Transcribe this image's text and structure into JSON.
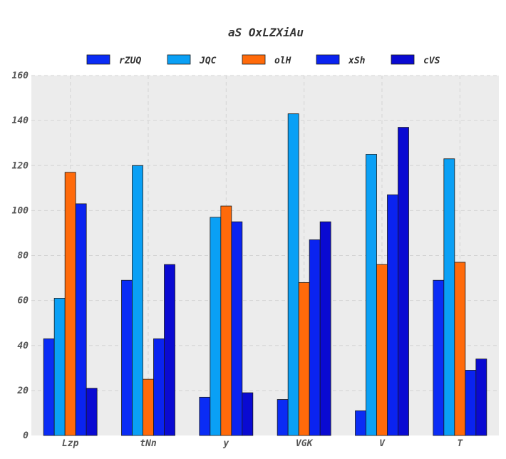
{
  "chart_data": {
    "type": "bar",
    "title": "aS  OxLZXiAu",
    "xlabel": "",
    "ylabel": "",
    "categories": [
      "Lzp",
      "tNn",
      "y",
      "VGK",
      "V",
      "T"
    ],
    "series": [
      {
        "name": "rZUQ",
        "color": "#0a2cf5",
        "values": [
          43,
          69,
          17,
          16,
          11,
          69
        ]
      },
      {
        "name": "JQC",
        "color": "#0aa0f5",
        "values": [
          61,
          120,
          97,
          143,
          125,
          123
        ]
      },
      {
        "name": "olH",
        "color": "#ff6a0a",
        "values": [
          117,
          25,
          102,
          68,
          76,
          77
        ]
      },
      {
        "name": "xSh",
        "color": "#0a23f0",
        "values": [
          103,
          43,
          95,
          87,
          107,
          29
        ]
      },
      {
        "name": "cVS",
        "color": "#0a0ad2",
        "values": [
          21,
          76,
          19,
          95,
          137,
          34
        ]
      }
    ],
    "ylim": [
      0,
      160
    ],
    "yticks": [
      0,
      20,
      40,
      60,
      80,
      100,
      120,
      140,
      160
    ],
    "grid": true,
    "legend_position": "top-center",
    "plot_background": "#ececec"
  }
}
